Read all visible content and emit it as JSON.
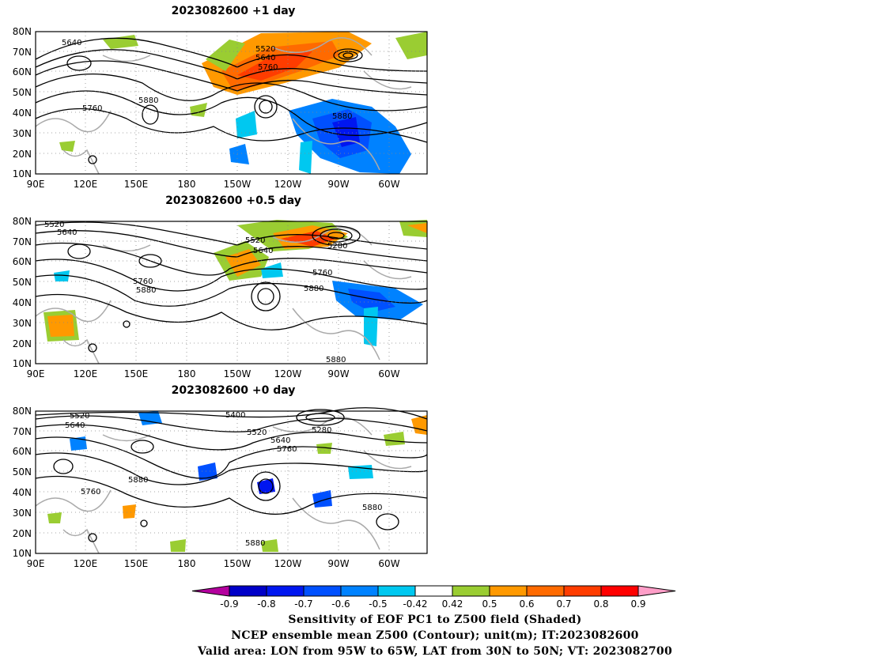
{
  "panels": [
    {
      "title": "2023082600  +1 day",
      "contour_labels": [
        "5640",
        "5520",
        "5640",
        "5760",
        "5760",
        "5880",
        "5880"
      ]
    },
    {
      "title": "2023082600  +0.5 day",
      "contour_labels": [
        "5520",
        "5640",
        "5520",
        "5640",
        "5280",
        "5760",
        "5760",
        "5880",
        "5880",
        "5880"
      ]
    },
    {
      "title": "2023082600  +0 day",
      "contour_labels": [
        "5520",
        "5640",
        "5400",
        "5520",
        "5640",
        "5760",
        "5280",
        "5880",
        "5760",
        "5880",
        "5880"
      ]
    }
  ],
  "map": {
    "lat_labels": [
      "80N",
      "70N",
      "60N",
      "50N",
      "40N",
      "30N",
      "20N",
      "10N"
    ],
    "lon_labels": [
      "90E",
      "120E",
      "150E",
      "180",
      "150W",
      "120W",
      "90W",
      "60W"
    ]
  },
  "colorbar": {
    "tick_labels": [
      "-0.9",
      "-0.8",
      "-0.7",
      "-0.6",
      "-0.5",
      "-0.42",
      "0.42",
      "0.5",
      "0.6",
      "0.7",
      "0.8",
      "0.9"
    ],
    "colors": [
      "#b4009e",
      "#0000c8",
      "#0016f0",
      "#0050ff",
      "#0082ff",
      "#00c8f0",
      "#ffffff",
      "#9acd32",
      "#ff9900",
      "#ff6a00",
      "#ff3c00",
      "#ff0000",
      "#ff9ec8"
    ]
  },
  "caption": {
    "line1": "Sensitivity of EOF PC1 to Z500 field (Shaded)",
    "line2": "NCEP ensemble mean Z500 (Contour); unit(m); IT:2023082600",
    "line3": "Valid area: LON from 95W to 65W, LAT from 30N to 50N; VT: 2023082700"
  }
}
